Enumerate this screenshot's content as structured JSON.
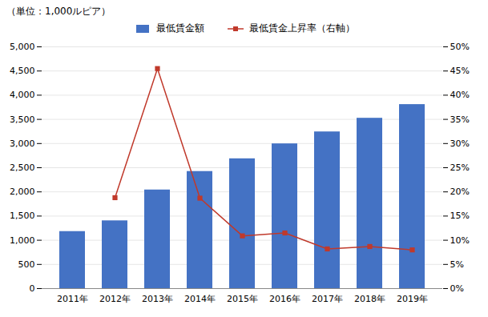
{
  "chart_data": {
    "type": "bar",
    "title": "（単位：1,000ルピア）",
    "categories": [
      "2011年",
      "2012年",
      "2013年",
      "2014年",
      "2015年",
      "2016年",
      "2017年",
      "2018年",
      "2019年"
    ],
    "series": [
      {
        "name": "最低賃金額",
        "type": "bar",
        "color": "#4472C4",
        "values": [
          1180,
          1402,
          2040,
          2422.092,
          2685.305,
          2994.111,
          3241.125,
          3523.427,
          3806.358
        ]
      },
      {
        "name": "最低賃金上昇率（右軸）",
        "type": "line",
        "color": "#C0392B",
        "marker": "square",
        "axis": "y2",
        "values": [
          null,
          18.8,
          45.5,
          18.7,
          10.9,
          11.5,
          8.2,
          8.7,
          8.0
        ]
      }
    ],
    "ylim": [
      0,
      5000
    ],
    "yticks": [
      0,
      500,
      {
        "value": 1000,
        "label": "1,000"
      },
      {
        "value": 1500,
        "label": "1,500"
      },
      {
        "value": 2000,
        "label": "2,000"
      },
      {
        "value": 2500,
        "label": "2,500"
      },
      {
        "value": 3000,
        "label": "3,000"
      },
      {
        "value": 3500,
        "label": "3,500"
      },
      {
        "value": 4000,
        "label": "4,000"
      },
      {
        "value": 4500,
        "label": "4,500"
      },
      {
        "value": 5000,
        "label": "5,000"
      }
    ],
    "y2lim": [
      0,
      50
    ],
    "y2ticks": [
      {
        "value": 0,
        "label": "0%"
      },
      {
        "value": 5,
        "label": "5%"
      },
      {
        "value": 10,
        "label": "10%"
      },
      {
        "value": 15,
        "label": "15%"
      },
      {
        "value": 20,
        "label": "20%"
      },
      {
        "value": 25,
        "label": "25%"
      },
      {
        "value": 30,
        "label": "30%"
      },
      {
        "value": 35,
        "label": "35%"
      },
      {
        "value": 40,
        "label": "40%"
      },
      {
        "value": 45,
        "label": "45%"
      },
      {
        "value": 50,
        "label": "50%"
      }
    ],
    "grid": true,
    "legend": "top"
  }
}
